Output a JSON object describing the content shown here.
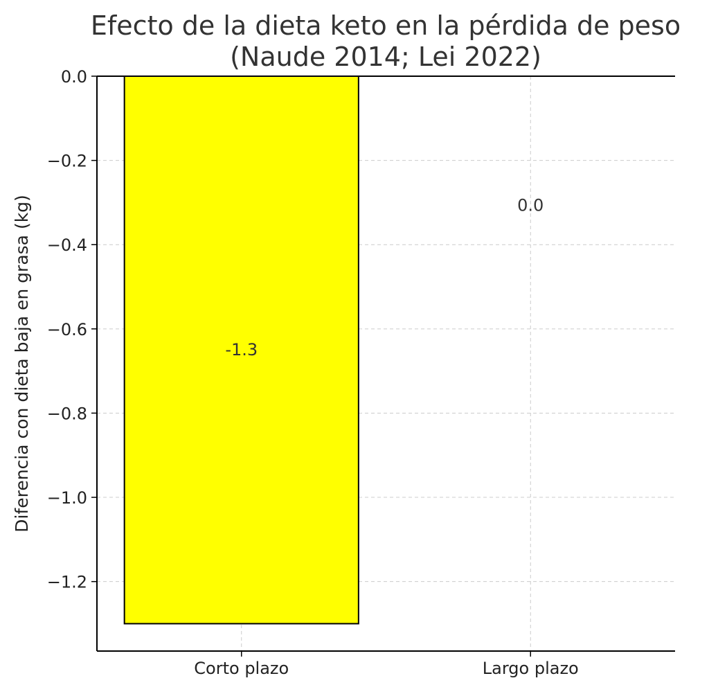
{
  "chart_data": {
    "type": "bar",
    "title_lines": [
      "Efecto de la dieta keto en la pérdida de peso",
      "(Naude 2014; Lei 2022)"
    ],
    "xlabel": "",
    "ylabel": "Diferencia con dieta baja en grasa (kg)",
    "categories": [
      "Corto plazo",
      "Largo plazo"
    ],
    "values": [
      -1.3,
      0.0
    ],
    "data_labels": [
      "-1.3",
      "0.0"
    ],
    "ylim": [
      -1.365,
      0.0
    ],
    "yticks": [
      0.0,
      -0.2,
      -0.4,
      -0.6,
      -0.8,
      -1.0,
      -1.2
    ],
    "ytick_labels": [
      "0.0",
      "−0.2",
      "−0.4",
      "−0.6",
      "−0.8",
      "−1.0",
      "−1.2"
    ],
    "grid": true,
    "colors": {
      "bar": "#ffff00",
      "bar_edge": "#000000",
      "grid": "#cccccc",
      "axis": "#000000",
      "text": "#333333"
    }
  }
}
